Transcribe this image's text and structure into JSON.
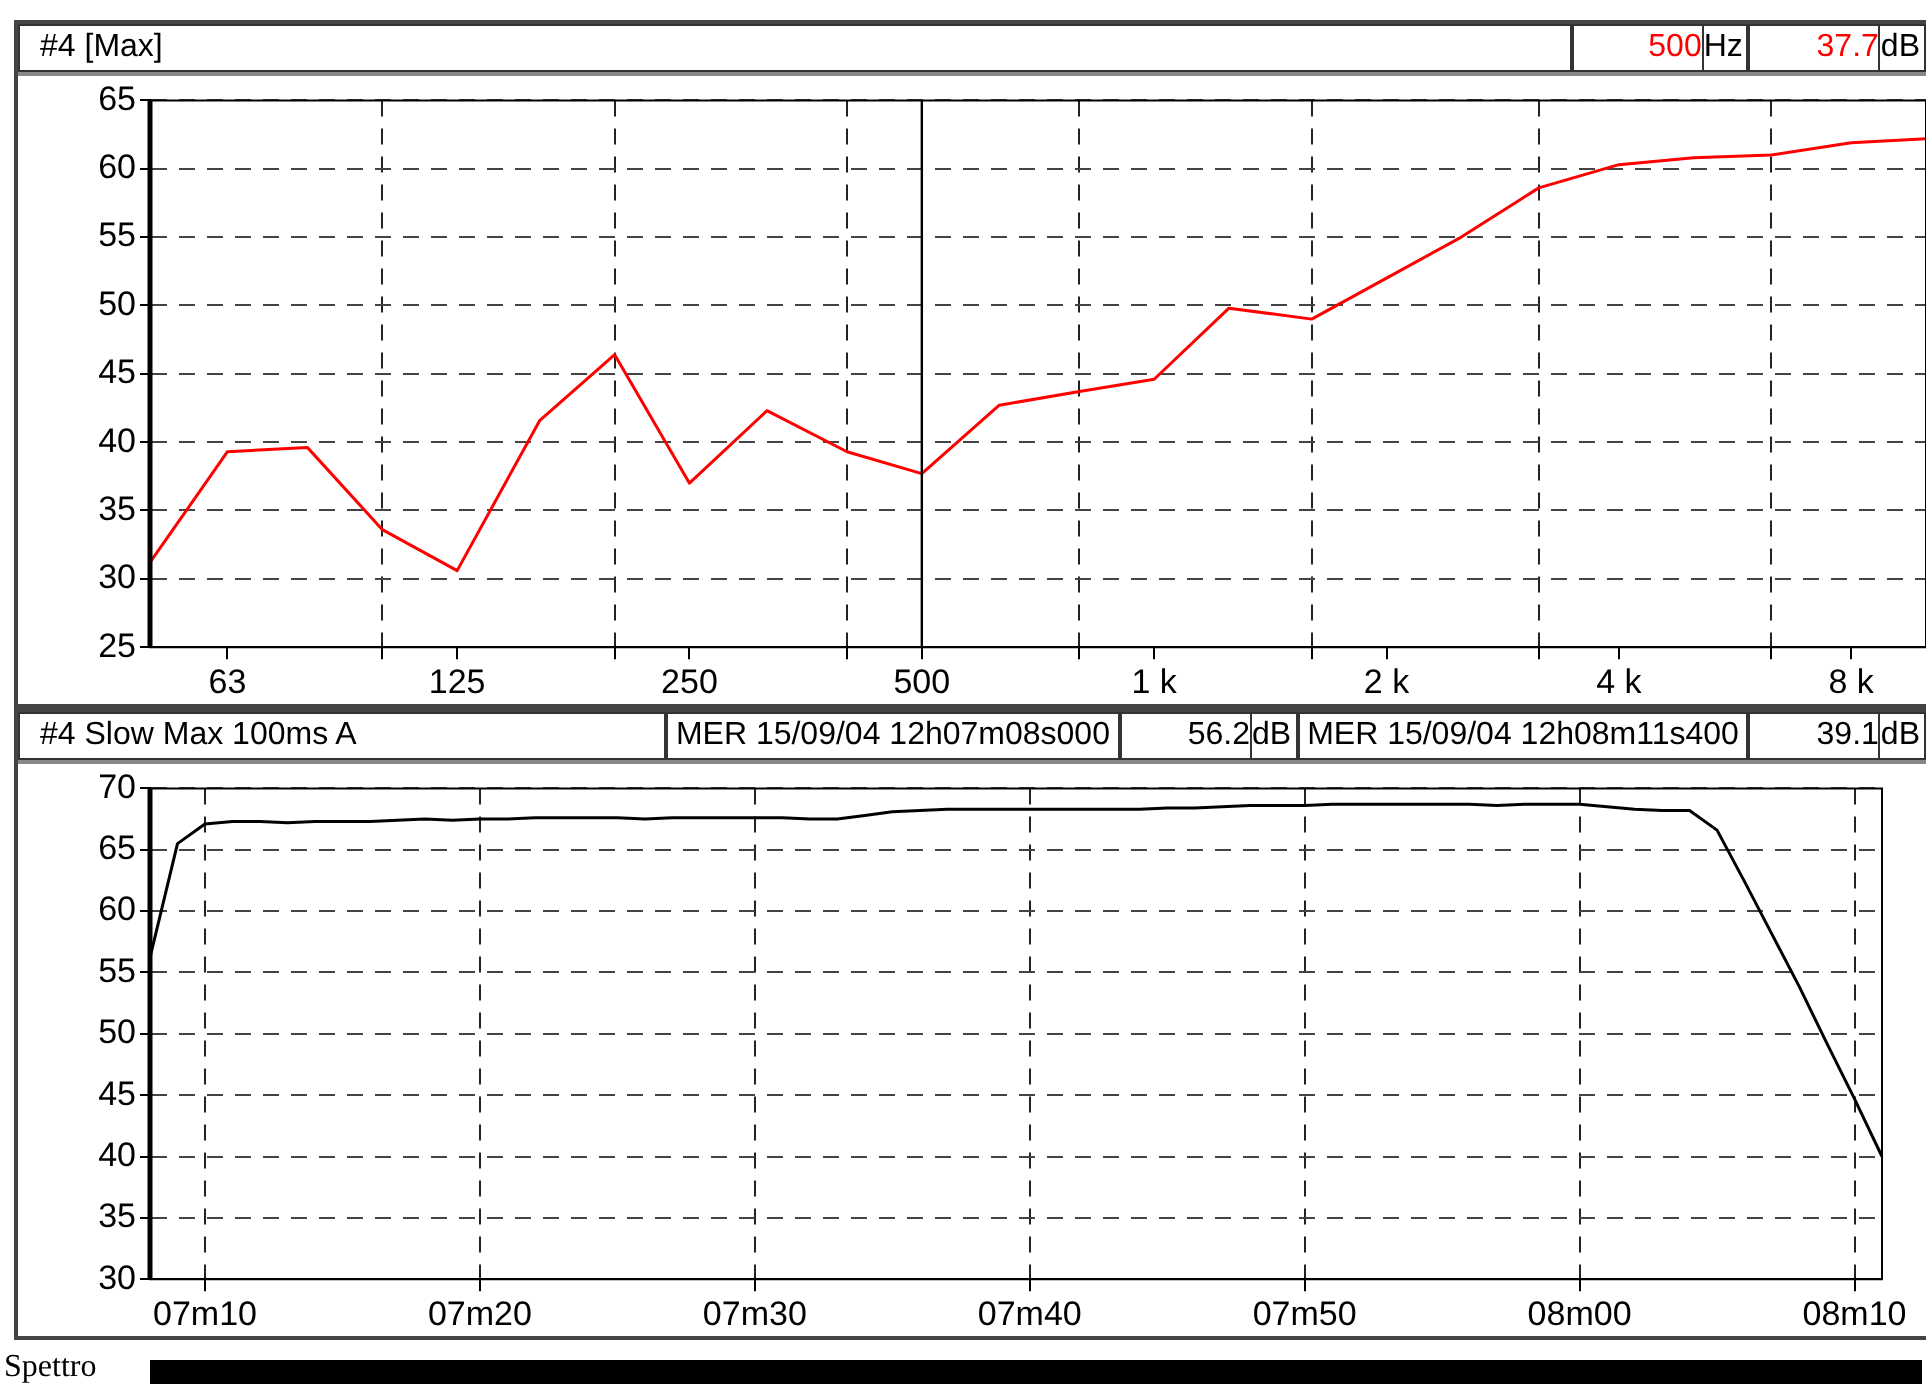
{
  "chart_data": [
    {
      "type": "line",
      "title": "#4 [Max]",
      "x": [
        50,
        63,
        80,
        100,
        125,
        160,
        200,
        250,
        315,
        400,
        500,
        630,
        800,
        1000,
        1250,
        1600,
        2000,
        2500,
        3150,
        4000,
        5000,
        6300,
        8000,
        10000
      ],
      "series": [
        {
          "color": "#ff0000",
          "values": [
            31.2,
            39.3,
            39.6,
            33.6,
            30.6,
            41.6,
            46.4,
            37.0,
            42.3,
            39.3,
            37.7,
            42.7,
            43.7,
            44.6,
            49.8,
            49.0,
            52.0,
            55.0,
            58.6,
            60.3,
            60.8,
            61.0,
            61.9,
            62.2
          ]
        }
      ],
      "log": "x",
      "xlim": [
        50,
        10000
      ],
      "xticks": [
        {
          "value": 63,
          "label": "63"
        },
        {
          "value": 100,
          "label": null
        },
        {
          "value": 125,
          "label": "125"
        },
        {
          "value": 200,
          "label": null
        },
        {
          "value": 250,
          "label": "250"
        },
        {
          "value": 400,
          "label": null
        },
        {
          "value": 500,
          "label": "500"
        },
        {
          "value": 800,
          "label": null
        },
        {
          "value": 1000,
          "label": "1 k"
        },
        {
          "value": 1600,
          "label": null
        },
        {
          "value": 2000,
          "label": "2 k"
        },
        {
          "value": 3150,
          "label": null
        },
        {
          "value": 4000,
          "label": "4 k"
        },
        {
          "value": 6300,
          "label": null
        },
        {
          "value": 8000,
          "label": "8 k"
        }
      ],
      "ylim": [
        25,
        65
      ],
      "yticks": [
        25,
        30,
        35,
        40,
        45,
        50,
        55,
        60,
        65
      ],
      "grid": true,
      "ref_lines": [
        {
          "axis": "x",
          "value": 500,
          "color": "#000000"
        }
      ],
      "annotations": [
        "500Hz",
        "37.7dB"
      ]
    },
    {
      "type": "line",
      "title": "#4  Slow Max 100ms  A",
      "categories": [
        null,
        null,
        "07m10",
        null,
        null,
        null,
        null,
        null,
        null,
        null,
        null,
        null,
        "07m20",
        null,
        null,
        null,
        null,
        null,
        null,
        null,
        null,
        null,
        "07m30",
        null,
        null,
        null,
        null,
        null,
        null,
        null,
        null,
        null,
        "07m40",
        null,
        null,
        null,
        null,
        null,
        null,
        null,
        null,
        null,
        "07m50",
        null,
        null,
        null,
        null,
        null,
        null,
        null,
        null,
        null,
        "08m00",
        null,
        null,
        null,
        null,
        null,
        null,
        null,
        null,
        null,
        "08m10",
        null
      ],
      "series": [
        {
          "color": "#000000",
          "values": [
            56.2,
            65.5,
            67.1,
            67.3,
            67.3,
            67.2,
            67.3,
            67.3,
            67.3,
            67.4,
            67.5,
            67.4,
            67.5,
            67.5,
            67.6,
            67.6,
            67.6,
            67.6,
            67.5,
            67.6,
            67.6,
            67.6,
            67.6,
            67.6,
            67.5,
            67.5,
            67.8,
            68.1,
            68.2,
            68.3,
            68.3,
            68.3,
            68.3,
            68.3,
            68.3,
            68.3,
            68.3,
            68.4,
            68.4,
            68.5,
            68.6,
            68.6,
            68.6,
            68.7,
            68.7,
            68.7,
            68.7,
            68.7,
            68.7,
            68.6,
            68.7,
            68.7,
            68.7,
            68.5,
            68.3,
            68.2,
            68.2,
            66.6,
            62.4,
            58.1,
            53.8,
            49.2,
            44.7,
            40.0
          ]
        }
      ],
      "ylim": [
        30,
        70
      ],
      "yticks": [
        30,
        35,
        40,
        45,
        50,
        55,
        60,
        65,
        70
      ],
      "grid": true,
      "annotations": [
        "MER 15/09/04 12h07m08s000",
        "56.2dB",
        "MER 15/09/04 12h08m11s400",
        "39.1dB",
        "Spettro"
      ]
    }
  ]
}
